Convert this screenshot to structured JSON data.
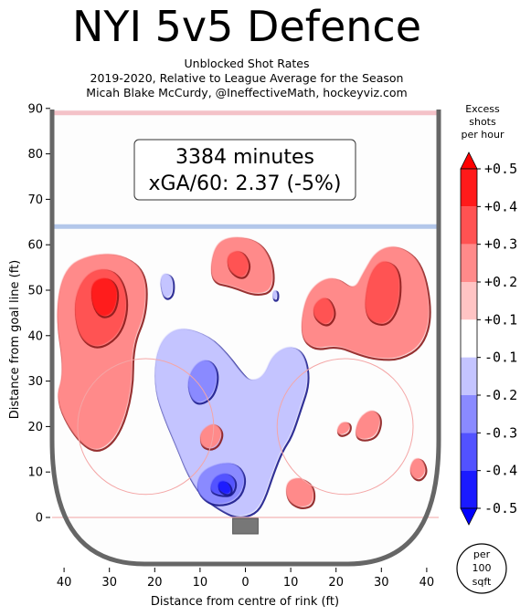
{
  "title": "NYI 5v5 Defence",
  "subtitle_lines": [
    "Unblocked Shot Rates",
    "2019-2020, Relative to League Average for the Season",
    "Micah Blake McCurdy, @IneffectiveMath, hockeyviz.com"
  ],
  "info_box": {
    "minutes": "3384 minutes",
    "xga": "xGA/60: 2.37 (-5%)"
  },
  "colorbar": {
    "title_lines": [
      "Excess",
      "shots",
      "per hour"
    ],
    "ticks": [
      "+0.5",
      "+0.4",
      "+0.3",
      "+0.2",
      "+0.1",
      "-0.1",
      "-0.2",
      "-0.3",
      "-0.4",
      "-0.5"
    ],
    "colors": [
      "#ff1a1a",
      "#ff5252",
      "#ff8a8a",
      "#ffc4c4",
      "#ffffff",
      "#c4c4ff",
      "#8a8aff",
      "#5252ff",
      "#1a1aff"
    ],
    "top_color": "#ff0000",
    "bottom_color": "#0000ff"
  },
  "per_unit_lines": [
    "per",
    "100",
    "sqft"
  ],
  "chart_data": {
    "type": "heatmap",
    "xlabel": "Distance from centre of rink (ft)",
    "ylabel": "Distance from goal line (ft)",
    "xlim": [
      -42,
      42
    ],
    "ylim": [
      -11,
      90
    ],
    "x_tick_values": [
      -40,
      -30,
      -20,
      -10,
      0,
      10,
      20,
      30,
      40
    ],
    "x_tick_labels": [
      "40",
      "30",
      "20",
      "10",
      "0",
      "10",
      "20",
      "30",
      "40"
    ],
    "y_ticks": [
      0,
      10,
      20,
      30,
      40,
      50,
      60,
      70,
      80,
      90
    ],
    "blue_line_y": 64,
    "red_line_y": 89,
    "faceoff_circles": [
      {
        "x": -22,
        "y": 20,
        "r": 15
      },
      {
        "x": 22,
        "y": 20,
        "r": 15
      }
    ],
    "regions": [
      {
        "level": 0.2,
        "points": [
          [
            -40,
            32
          ],
          [
            -42,
            45
          ],
          [
            -40,
            55
          ],
          [
            -34,
            58
          ],
          [
            -27,
            58
          ],
          [
            -22,
            54
          ],
          [
            -22,
            45
          ],
          [
            -25,
            38
          ],
          [
            -25,
            28
          ],
          [
            -28,
            18
          ],
          [
            -33,
            14
          ],
          [
            -38,
            18
          ],
          [
            -42,
            26
          ]
        ]
      },
      {
        "level": 0.3,
        "points": [
          [
            -37,
            40
          ],
          [
            -38,
            48
          ],
          [
            -35,
            54
          ],
          [
            -30,
            55
          ],
          [
            -27,
            52
          ],
          [
            -26,
            46
          ],
          [
            -28,
            40
          ],
          [
            -33,
            37
          ]
        ]
      },
      {
        "level": 0.4,
        "points": [
          [
            -34,
            47
          ],
          [
            -34,
            52
          ],
          [
            -30,
            53
          ],
          [
            -28,
            50
          ],
          [
            -29,
            45
          ],
          [
            -32,
            44
          ]
        ]
      },
      {
        "level": 0.2,
        "points": [
          [
            -8,
            52
          ],
          [
            -7,
            60
          ],
          [
            -3,
            62
          ],
          [
            3,
            61
          ],
          [
            6,
            56
          ],
          [
            6,
            50
          ],
          [
            2,
            49
          ],
          [
            -3,
            51
          ]
        ]
      },
      {
        "level": 0.3,
        "points": [
          [
            -4,
            55
          ],
          [
            -4,
            58
          ],
          [
            -1,
            59
          ],
          [
            1,
            56
          ],
          [
            0,
            53
          ],
          [
            -2,
            53
          ]
        ]
      },
      {
        "level": 0.2,
        "points": [
          [
            12,
            40
          ],
          [
            13,
            48
          ],
          [
            16,
            52
          ],
          [
            20,
            53
          ],
          [
            24,
            50
          ],
          [
            26,
            54
          ],
          [
            29,
            59
          ],
          [
            34,
            60
          ],
          [
            39,
            56
          ],
          [
            41,
            45
          ],
          [
            39,
            38
          ],
          [
            34,
            35
          ],
          [
            29,
            35
          ],
          [
            25,
            36
          ],
          [
            20,
            38
          ],
          [
            15,
            37
          ]
        ]
      },
      {
        "level": 0.3,
        "points": [
          [
            26,
            44
          ],
          [
            27,
            53
          ],
          [
            30,
            57
          ],
          [
            34,
            55
          ],
          [
            34,
            47
          ],
          [
            31,
            42
          ]
        ]
      },
      {
        "level": 0.3,
        "points": [
          [
            15,
            44
          ],
          [
            15,
            47
          ],
          [
            18,
            49
          ],
          [
            20,
            45
          ],
          [
            18,
            42
          ]
        ]
      },
      {
        "level": -0.1,
        "points": [
          [
            -20,
            35
          ],
          [
            -18,
            40
          ],
          [
            -14,
            42
          ],
          [
            -8,
            40
          ],
          [
            -4,
            36
          ],
          [
            -1,
            32
          ],
          [
            1,
            30
          ],
          [
            4,
            31
          ],
          [
            6,
            36
          ],
          [
            10,
            38
          ],
          [
            13,
            36
          ],
          [
            14,
            30
          ],
          [
            12,
            24
          ],
          [
            10,
            18
          ],
          [
            8,
            15
          ],
          [
            6,
            10
          ],
          [
            4,
            4
          ],
          [
            2,
            1
          ],
          [
            -2,
            0
          ],
          [
            -6,
            2
          ],
          [
            -10,
            5
          ],
          [
            -13,
            10
          ],
          [
            -15,
            15
          ],
          [
            -18,
            22
          ],
          [
            -20,
            28
          ]
        ]
      },
      {
        "level": -0.2,
        "points": [
          [
            -12,
            26
          ],
          [
            -13,
            30
          ],
          [
            -11,
            34
          ],
          [
            -8,
            35
          ],
          [
            -6,
            32
          ],
          [
            -7,
            27
          ],
          [
            -10,
            25
          ]
        ]
      },
      {
        "level": -0.2,
        "points": [
          [
            -11,
            6
          ],
          [
            -10,
            10
          ],
          [
            -6,
            12
          ],
          [
            -2,
            12
          ],
          [
            0,
            9
          ],
          [
            -1,
            5
          ],
          [
            -4,
            3
          ],
          [
            -8,
            3
          ]
        ]
      },
      {
        "level": -0.3,
        "points": [
          [
            -8,
            6
          ],
          [
            -7,
            9
          ],
          [
            -4,
            10
          ],
          [
            -2,
            8
          ],
          [
            -3,
            5
          ],
          [
            -6,
            5
          ]
        ]
      },
      {
        "level": -0.4,
        "points": [
          [
            -6,
            6
          ],
          [
            -6,
            8
          ],
          [
            -4,
            8
          ],
          [
            -3,
            6
          ],
          [
            -4,
            5
          ]
        ]
      },
      {
        "level": 0.2,
        "points": [
          [
            -10,
            16
          ],
          [
            -10,
            19
          ],
          [
            -7,
            21
          ],
          [
            -5,
            19
          ],
          [
            -6,
            16
          ],
          [
            -8,
            15
          ]
        ]
      },
      {
        "level": 0.2,
        "points": [
          [
            9,
            4
          ],
          [
            9,
            8
          ],
          [
            12,
            9
          ],
          [
            15,
            7
          ],
          [
            15,
            3
          ],
          [
            12,
            2
          ]
        ]
      },
      {
        "level": 0.2,
        "points": [
          [
            24,
            18
          ],
          [
            25,
            22
          ],
          [
            28,
            24
          ],
          [
            30,
            22
          ],
          [
            29,
            18
          ],
          [
            26,
            17
          ]
        ]
      },
      {
        "level": 0.2,
        "points": [
          [
            36,
            10
          ],
          [
            37,
            13
          ],
          [
            39,
            13
          ],
          [
            40,
            10
          ],
          [
            38,
            8
          ]
        ]
      },
      {
        "level": 0.2,
        "points": [
          [
            20,
            19
          ],
          [
            21,
            21
          ],
          [
            23,
            21
          ],
          [
            23,
            19
          ],
          [
            21,
            18
          ]
        ]
      },
      {
        "level": -0.1,
        "points": [
          [
            -19,
            52
          ],
          [
            -18,
            54
          ],
          [
            -16,
            53
          ],
          [
            -16,
            49
          ],
          [
            -18,
            48
          ]
        ]
      },
      {
        "level": -0.1,
        "points": [
          [
            6,
            48
          ],
          [
            6,
            50
          ],
          [
            7,
            50
          ],
          [
            7,
            48
          ]
        ]
      }
    ]
  }
}
